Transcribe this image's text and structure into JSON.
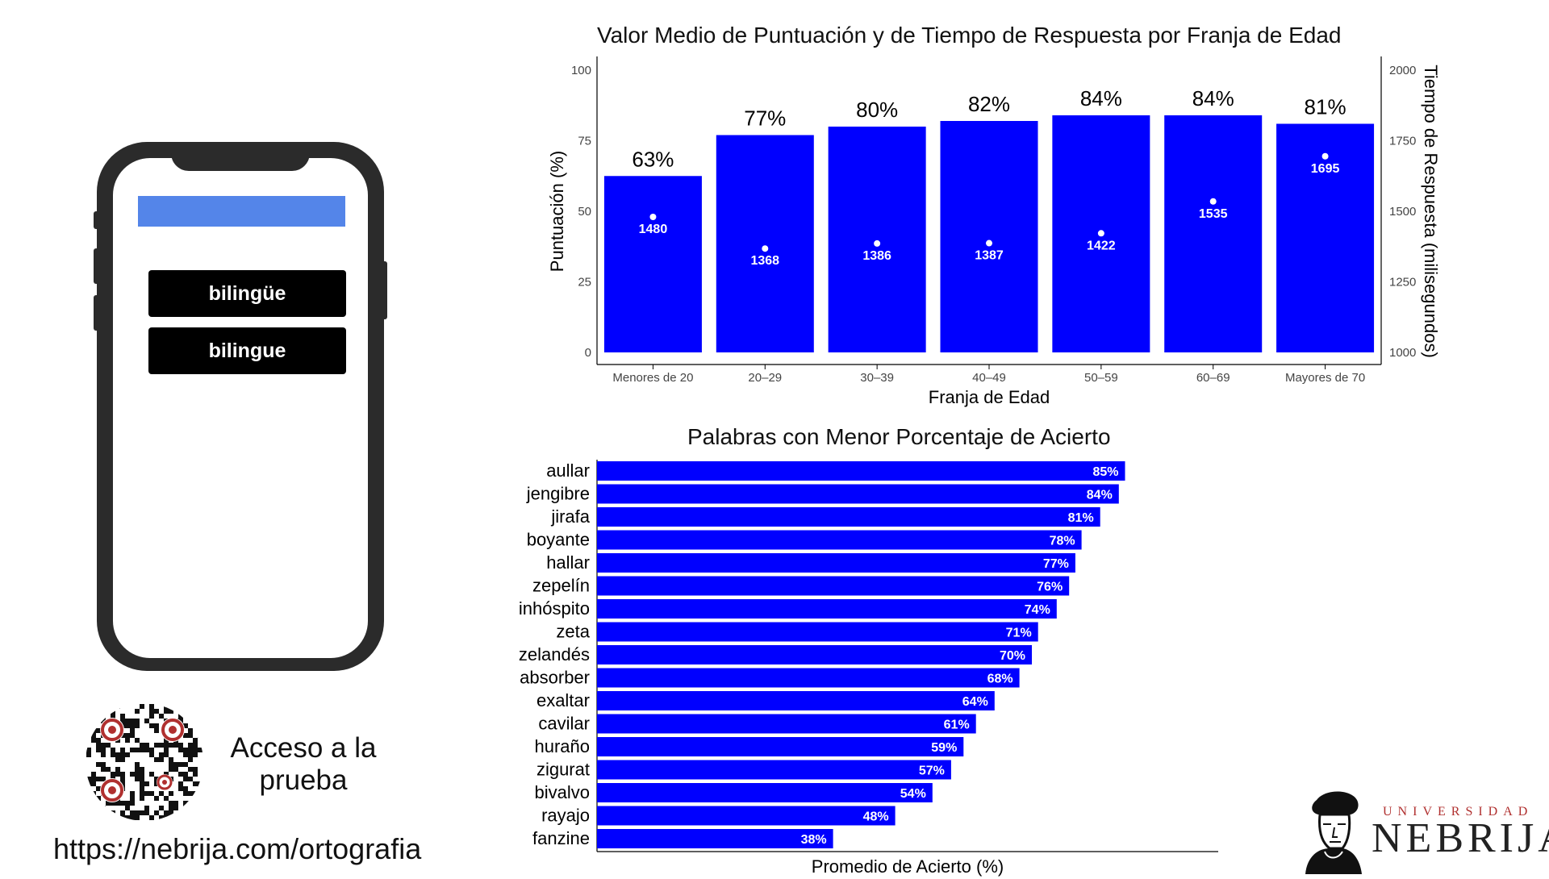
{
  "phone": {
    "options": [
      "bilingüe",
      "bilingue"
    ],
    "bar_color": "#5485e9"
  },
  "access": {
    "text": "Acceso a la prueba",
    "url": "https://nebrija.com/ortografia"
  },
  "logo": {
    "top_text": "UNIVERSIDAD",
    "word": "NEBRIJA",
    "accent": "#b0302f"
  },
  "chart_data": [
    {
      "type": "bar",
      "title": "Valor Medio de Puntuación y de Tiempo de Respuesta por Franja de Edad",
      "xlabel": "Franja de Edad",
      "ylabel": "Puntuación (%)",
      "y2label": "Tiempo de Respuesta (milisegundos)",
      "ylim": [
        0,
        100
      ],
      "y2lim": [
        1000,
        2000
      ],
      "yticks": [
        "0",
        "25",
        "50",
        "75",
        "100"
      ],
      "y2ticks": [
        "1000",
        "1250",
        "1500",
        "1750",
        "2000"
      ],
      "categories": [
        "Menores de 20",
        "20–29",
        "30–39",
        "40–49",
        "50–59",
        "60–69",
        "Mayores de 70"
      ],
      "series": [
        {
          "values": [
            62.5,
            77,
            80,
            82,
            84,
            84,
            81
          ],
          "labels": [
            "63%",
            "77%",
            "80%",
            "82%",
            "84%",
            "84%",
            "81%"
          ],
          "color": "#0000ff"
        },
        {
          "values": [
            1480,
            1368,
            1386,
            1387,
            1422,
            1535,
            1695
          ],
          "labels": [
            "1480",
            "1368",
            "1386",
            "1387",
            "1422",
            "1535",
            "1695"
          ],
          "color": "#ffffff"
        }
      ]
    },
    {
      "type": "bar",
      "orientation": "horizontal",
      "title": "Palabras con Menor Porcentaje de Acierto",
      "xlabel": "Promedio de Acierto (%)",
      "categories": [
        "aullar",
        "jengibre",
        "jirafa",
        "boyante",
        "hallar",
        "zepelín",
        "inhóspito",
        "zeta",
        "zelandés",
        "absorber",
        "exaltar",
        "cavilar",
        "huraño",
        "zigurat",
        "bivalvo",
        "rayajo",
        "fanzine"
      ],
      "values": [
        85,
        84,
        81,
        78,
        77,
        76,
        74,
        71,
        70,
        68,
        64,
        61,
        59,
        57,
        54,
        48,
        38
      ],
      "labels": [
        "85%",
        "84%",
        "81%",
        "78%",
        "77%",
        "76%",
        "74%",
        "71%",
        "70%",
        "68%",
        "64%",
        "61%",
        "59%",
        "57%",
        "54%",
        "48%",
        "38%"
      ],
      "color": "#0000ff"
    }
  ]
}
